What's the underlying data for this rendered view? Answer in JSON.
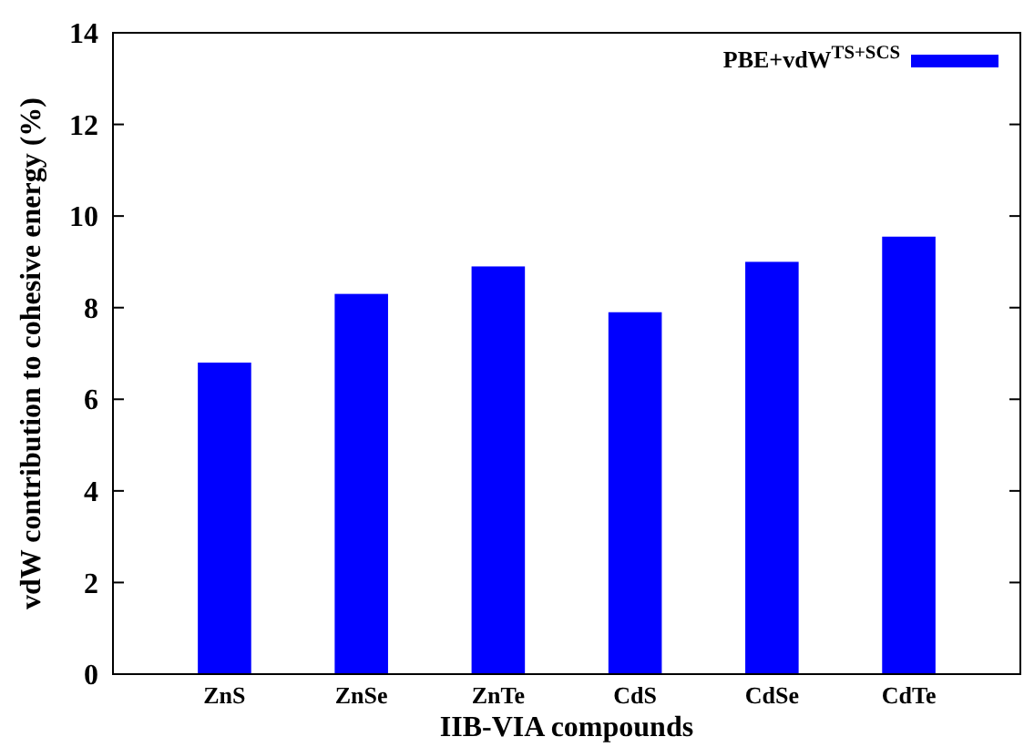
{
  "chart_data": {
    "type": "bar",
    "xlabel": "IIB-VIA compounds",
    "ylabel": "vdW contribution to cohesive energy (%)",
    "categories": [
      "ZnS",
      "ZnSe",
      "ZnTe",
      "CdS",
      "CdSe",
      "CdTe"
    ],
    "series": [
      {
        "name": "PBE+vdW$^{TS+SCS}$",
        "color": "#0000ff",
        "values": [
          6.8,
          8.3,
          8.9,
          7.9,
          9.0,
          9.55
        ]
      }
    ],
    "ylim": [
      0,
      14
    ],
    "yticks": [
      0,
      2,
      4,
      6,
      8,
      10,
      12,
      14
    ],
    "legend": "top right",
    "grid": false
  }
}
